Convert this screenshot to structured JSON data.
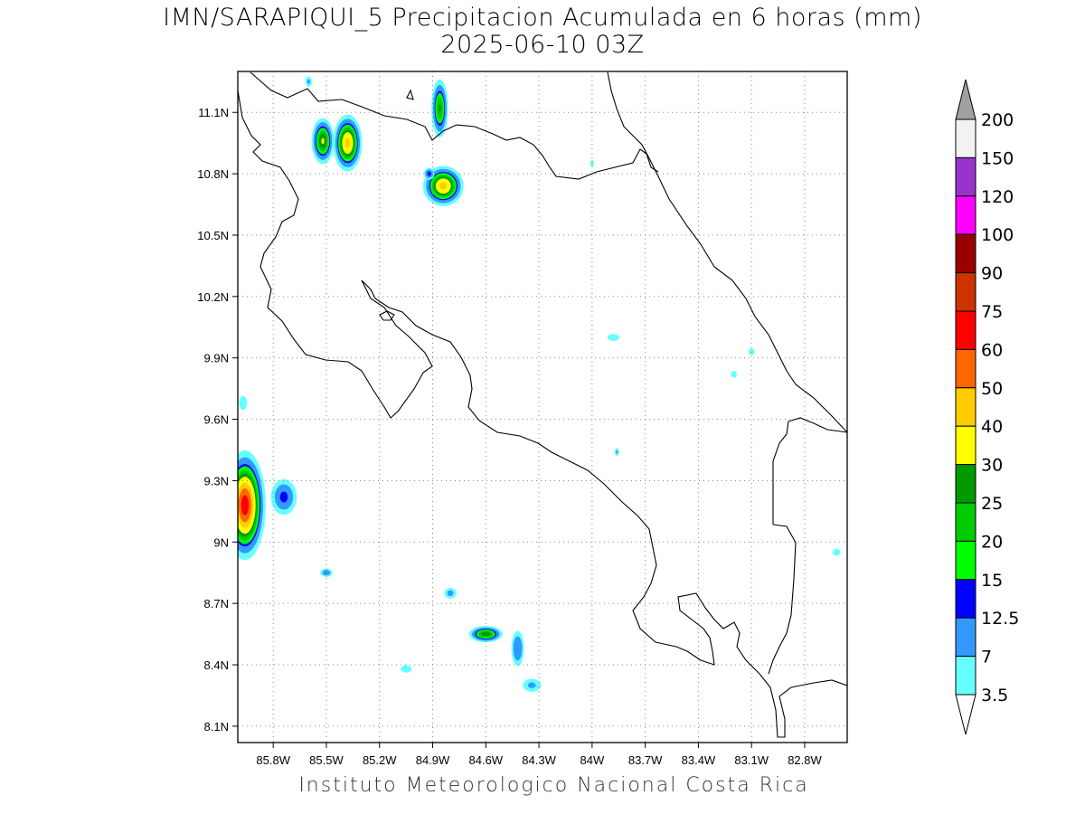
{
  "title": {
    "line1": "IMN/SARAPIQUI_5 Precipitacion Acumulada en 6 horas (mm)",
    "line2": "2025-06-10 03Z"
  },
  "footer": "Instituto Meteorologico Nacional Costa Rica",
  "map": {
    "lon_range": [
      -86.0,
      -82.56
    ],
    "lat_range": [
      8.02,
      11.3
    ],
    "lon_ticks": [
      {
        "value": -85.8,
        "label": "85.8W"
      },
      {
        "value": -85.5,
        "label": "85.5W"
      },
      {
        "value": -85.2,
        "label": "85.2W"
      },
      {
        "value": -84.9,
        "label": "84.9W"
      },
      {
        "value": -84.6,
        "label": "84.6W"
      },
      {
        "value": -84.3,
        "label": "84.3W"
      },
      {
        "value": -84.0,
        "label": "84W"
      },
      {
        "value": -83.7,
        "label": "83.7W"
      },
      {
        "value": -83.4,
        "label": "83.4W"
      },
      {
        "value": -83.1,
        "label": "83.1W"
      },
      {
        "value": -82.8,
        "label": "82.8W"
      }
    ],
    "lat_ticks": [
      {
        "value": 11.1,
        "label": "11.1N"
      },
      {
        "value": 10.8,
        "label": "10.8N"
      },
      {
        "value": 10.5,
        "label": "10.5N"
      },
      {
        "value": 10.2,
        "label": "10.2N"
      },
      {
        "value": 9.9,
        "label": "9.9N"
      },
      {
        "value": 9.6,
        "label": "9.6N"
      },
      {
        "value": 9.3,
        "label": "9.3N"
      },
      {
        "value": 9.0,
        "label": "9N"
      },
      {
        "value": 8.7,
        "label": "8.7N"
      },
      {
        "value": 8.4,
        "label": "8.4N"
      },
      {
        "value": 8.1,
        "label": "8.1N"
      }
    ],
    "grid": "dotted"
  },
  "colorbar": {
    "orientation": "vertical",
    "upper_arrow_color": "#a0a0a0",
    "lower_arrow_color": "#ffffff",
    "levels": [
      {
        "label": "200",
        "color": "#f2f2f2"
      },
      {
        "label": "150",
        "color": "#9933cc"
      },
      {
        "label": "120",
        "color": "#ff00ff"
      },
      {
        "label": "100",
        "color": "#990000"
      },
      {
        "label": "90",
        "color": "#cc3300"
      },
      {
        "label": "75",
        "color": "#ff0000"
      },
      {
        "label": "60",
        "color": "#ff6600"
      },
      {
        "label": "50",
        "color": "#ffcc00"
      },
      {
        "label": "40",
        "color": "#ffff00"
      },
      {
        "label": "30",
        "color": "#009900"
      },
      {
        "label": "25",
        "color": "#00cc00"
      },
      {
        "label": "20",
        "color": "#00ff00"
      },
      {
        "label": "15",
        "color": "#0000ff"
      },
      {
        "label": "12.5",
        "color": "#3399ff"
      },
      {
        "label": "7",
        "color": "#66ffff"
      },
      {
        "label": "3.5",
        "color": ""
      }
    ]
  },
  "precip_cells": [
    {
      "lon": -85.52,
      "lat": 10.96,
      "rx": 0.08,
      "ry": 0.14,
      "peak_mm": 30
    },
    {
      "lon": -85.38,
      "lat": 10.95,
      "rx": 0.1,
      "ry": 0.17,
      "peak_mm": 42
    },
    {
      "lon": -84.84,
      "lat": 10.74,
      "rx": 0.14,
      "ry": 0.12,
      "peak_mm": 42
    },
    {
      "lon": -84.86,
      "lat": 11.12,
      "rx": 0.06,
      "ry": 0.18,
      "peak_mm": 25
    },
    {
      "lon": -85.6,
      "lat": 11.25,
      "rx": 0.03,
      "ry": 0.04,
      "peak_mm": 7
    },
    {
      "lon": -84.92,
      "lat": 10.8,
      "rx": 0.04,
      "ry": 0.04,
      "peak_mm": 14
    },
    {
      "lon": -85.96,
      "lat": 9.18,
      "rx": 0.14,
      "ry": 0.32,
      "peak_mm": 65
    },
    {
      "lon": -85.74,
      "lat": 9.22,
      "rx": 0.1,
      "ry": 0.12,
      "peak_mm": 13
    },
    {
      "lon": -85.5,
      "lat": 8.85,
      "rx": 0.05,
      "ry": 0.03,
      "peak_mm": 10
    },
    {
      "lon": -84.6,
      "lat": 8.55,
      "rx": 0.12,
      "ry": 0.05,
      "peak_mm": 28
    },
    {
      "lon": -84.42,
      "lat": 8.48,
      "rx": 0.05,
      "ry": 0.12,
      "peak_mm": 12
    },
    {
      "lon": -84.8,
      "lat": 8.75,
      "rx": 0.05,
      "ry": 0.04,
      "peak_mm": 8
    },
    {
      "lon": -84.34,
      "lat": 8.3,
      "rx": 0.08,
      "ry": 0.05,
      "peak_mm": 7
    },
    {
      "lon": -85.05,
      "lat": 8.38,
      "rx": 0.05,
      "ry": 0.03,
      "peak_mm": 6
    },
    {
      "lon": -83.88,
      "lat": 10.0,
      "rx": 0.06,
      "ry": 0.03,
      "peak_mm": 5
    },
    {
      "lon": -83.1,
      "lat": 9.93,
      "rx": 0.03,
      "ry": 0.03,
      "peak_mm": 5
    },
    {
      "lon": -83.2,
      "lat": 9.82,
      "rx": 0.03,
      "ry": 0.03,
      "peak_mm": 5
    },
    {
      "lon": -83.86,
      "lat": 9.44,
      "rx": 0.02,
      "ry": 0.03,
      "peak_mm": 7
    },
    {
      "lon": -84.0,
      "lat": 10.85,
      "rx": 0.02,
      "ry": 0.03,
      "peak_mm": 5
    },
    {
      "lon": -85.97,
      "lat": 9.68,
      "rx": 0.04,
      "ry": 0.06,
      "peak_mm": 5
    },
    {
      "lon": -82.62,
      "lat": 8.95,
      "rx": 0.04,
      "ry": 0.03,
      "peak_mm": 5
    }
  ]
}
